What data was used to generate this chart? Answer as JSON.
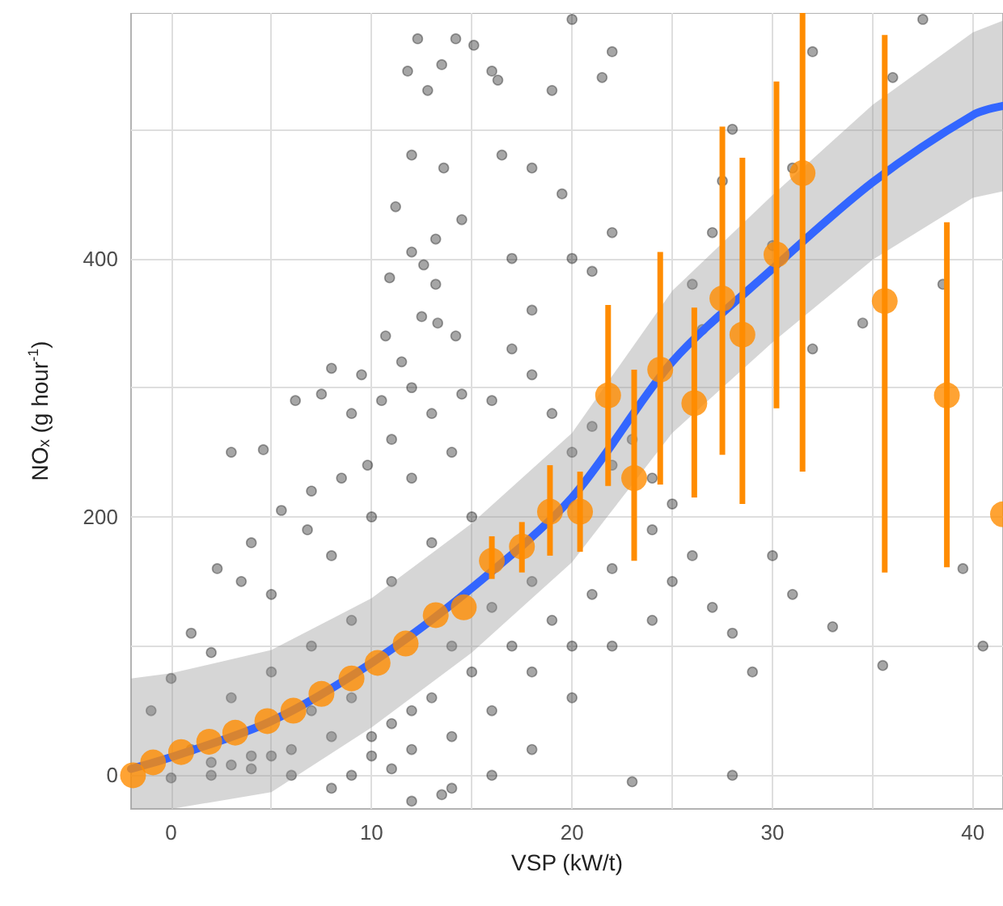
{
  "chart_data": {
    "type": "scatter",
    "xlabel": "VSP (kW/t)",
    "ylabel": "NOₓ (g hour$^{-1}$)",
    "xlim": [
      -2,
      41.5
    ],
    "ylim": [
      -26,
      590
    ],
    "xticks": [
      0,
      {
        "value": 5,
        "label": null
      },
      10,
      {
        "value": 15,
        "label": null
      },
      20,
      {
        "value": 25,
        "label": null
      },
      30,
      {
        "value": 35,
        "label": null
      },
      40
    ],
    "yticks": [
      0,
      {
        "value": 100,
        "label": null
      },
      200,
      {
        "value": 300,
        "label": null
      },
      400,
      {
        "value": 500,
        "label": null
      }
    ],
    "grid": true,
    "series": [
      {
        "marker": "circle",
        "color": "#000000",
        "x": [
          12.3,
          14.2,
          11.8,
          13.5,
          12.8,
          15.1,
          16,
          16.3,
          12,
          13.6,
          11.2,
          14.5,
          13.2,
          12,
          12.6,
          10.9,
          13.2,
          12.5,
          13.3,
          10.7,
          14.2,
          11.5,
          8,
          9.5,
          7.5,
          6.2,
          3,
          4.6,
          9,
          10.5,
          12,
          13,
          14.5,
          11,
          9.8,
          8.5,
          7,
          5.5,
          6.8,
          4,
          2.3,
          3.5,
          1,
          0,
          -1,
          2,
          5,
          8,
          10,
          12,
          14,
          16,
          17,
          18,
          17,
          16.5,
          18,
          19.5,
          20,
          21,
          22,
          18,
          19,
          20,
          21,
          22,
          23,
          24,
          25,
          26,
          27,
          28,
          30,
          31,
          33,
          35.5,
          39.5,
          40.5,
          29,
          28,
          23,
          25,
          24,
          22,
          20,
          18,
          16,
          14,
          12,
          13.5,
          11,
          9,
          8,
          6,
          4,
          2,
          0,
          1,
          3,
          5,
          7,
          9,
          11,
          13,
          15,
          17,
          19,
          21,
          3,
          5,
          7,
          9,
          11,
          13,
          15,
          10,
          12,
          14,
          16,
          18,
          20,
          22,
          24,
          26,
          27,
          28,
          30,
          31,
          32,
          22,
          20,
          21.5,
          19,
          26.5,
          27.5,
          32,
          34.5,
          36,
          38.5,
          37.5,
          6,
          8,
          4,
          2,
          10,
          12,
          14,
          16,
          18
        ],
        "values": [
          570,
          570,
          545,
          550,
          530,
          565,
          545,
          538,
          480,
          470,
          440,
          430,
          415,
          405,
          395,
          385,
          380,
          355,
          350,
          340,
          340,
          320,
          315,
          310,
          295,
          290,
          250,
          252,
          280,
          290,
          300,
          280,
          295,
          260,
          240,
          230,
          220,
          205,
          190,
          180,
          160,
          150,
          110,
          75,
          50,
          95,
          140,
          170,
          200,
          230,
          250,
          290,
          330,
          360,
          400,
          480,
          470,
          450,
          400,
          390,
          420,
          310,
          280,
          250,
          270,
          240,
          260,
          230,
          210,
          170,
          130,
          110,
          170,
          140,
          115,
          85,
          160,
          100,
          80,
          0,
          -5,
          150,
          120,
          100,
          60,
          20,
          0,
          -10,
          -20,
          -15,
          5,
          0,
          -10,
          0,
          5,
          0,
          -2,
          20,
          8,
          15,
          50,
          60,
          40,
          60,
          80,
          100,
          120,
          140,
          60,
          80,
          100,
          120,
          150,
          180,
          200,
          30,
          20,
          30,
          50,
          80,
          100,
          160,
          190,
          380,
          420,
          500,
          410,
          470,
          560,
          560,
          585,
          540,
          530,
          345,
          460,
          330,
          350,
          540,
          380,
          585,
          20,
          30,
          15,
          10,
          15,
          50,
          100,
          130,
          150
        ]
      },
      {
        "type": "line",
        "marker": "none",
        "color": "#3366ff",
        "x": [
          -2,
          0,
          5,
          10,
          15,
          20,
          25,
          30,
          35,
          40,
          41.5
        ],
        "values": [
          5,
          14,
          42,
          87,
          145,
          215,
          320,
          392,
          459,
          511,
          518
        ],
        "lower": [
          -26,
          -26,
          -13,
          37,
          95,
          165,
          265,
          335,
          399,
          447,
          452
        ],
        "upper": [
          75,
          79,
          97,
          137,
          195,
          265,
          375,
          449,
          519,
          575,
          584
        ]
      },
      {
        "marker": "circle",
        "color": "#ff8c00",
        "x": [
          -1.9,
          -0.9,
          0.5,
          1.9,
          3.2,
          4.8,
          6.1,
          7.5,
          9.0,
          10.3,
          11.7,
          13.2,
          14.6,
          16.0,
          17.5,
          18.9,
          20.4,
          21.8,
          23.1,
          24.4,
          26.1,
          27.5,
          28.5,
          30.2,
          31.5,
          35.6,
          38.7,
          41.5
        ],
        "values": [
          0,
          10,
          18,
          26,
          33,
          42,
          50,
          63,
          75,
          87,
          102,
          124,
          130,
          166,
          177,
          204,
          204,
          294,
          230,
          314,
          288,
          369,
          341,
          403,
          466,
          367,
          294,
          202
        ],
        "errors": [
          null,
          null,
          null,
          null,
          null,
          null,
          null,
          null,
          null,
          null,
          null,
          null,
          null,
          [
            152,
            185
          ],
          [
            157,
            196
          ],
          [
            170,
            240
          ],
          [
            173,
            235
          ],
          [
            224,
            364
          ],
          [
            166,
            314
          ],
          [
            225,
            405
          ],
          [
            215,
            362
          ],
          [
            248,
            502
          ],
          [
            210,
            478
          ],
          [
            284,
            537
          ],
          [
            235,
            590
          ],
          [
            157,
            573
          ],
          [
            161,
            428
          ],
          null
        ]
      }
    ]
  }
}
